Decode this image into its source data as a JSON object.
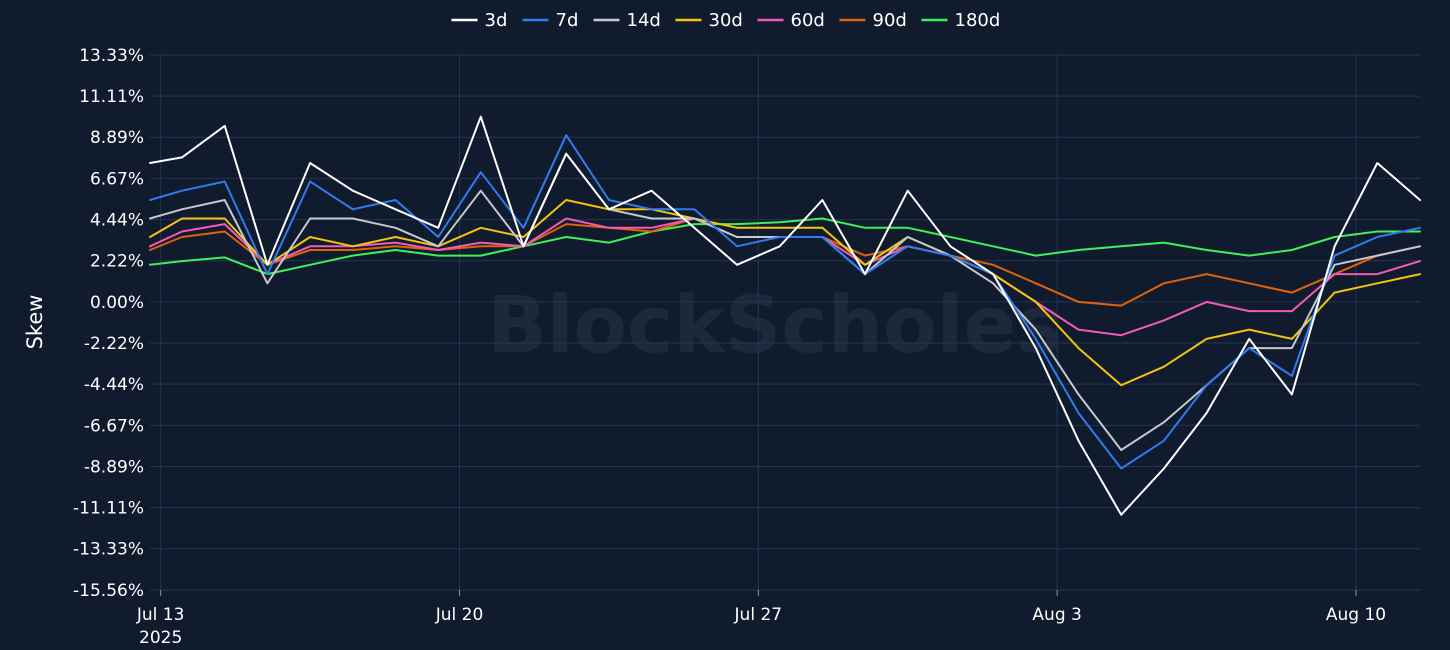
{
  "chart_data": {
    "type": "line",
    "ylabel": "Skew",
    "watermark": "BlockScholes",
    "y_axis": {
      "ticks": [
        13.33,
        11.11,
        8.89,
        6.67,
        4.44,
        2.22,
        0.0,
        -2.22,
        -4.44,
        -6.67,
        -8.89,
        -11.11,
        -13.33,
        -15.56
      ],
      "tick_labels": [
        "13.33%",
        "11.11%",
        "8.89%",
        "6.67%",
        "4.44%",
        "2.22%",
        "0.00%",
        "-2.22%",
        "-4.44%",
        "-6.67%",
        "-8.89%",
        "-11.11%",
        "-13.33%",
        "-15.56%"
      ],
      "range": [
        -15.56,
        13.33
      ]
    },
    "x_axis": {
      "ticks": [
        "2025-07-13",
        "2025-07-20",
        "2025-07-27",
        "2025-08-03",
        "2025-08-10"
      ],
      "tick_labels": [
        "Jul 13",
        "Jul 20",
        "Jul 27",
        "Aug 3",
        "Aug 10"
      ],
      "year_label": "2025",
      "range": [
        "2025-07-12 18:00",
        "2025-08-11 12:00"
      ]
    },
    "grid": true,
    "legend_position": "top-center",
    "x": [
      "2025-07-12 18:00",
      "2025-07-13 12:00",
      "2025-07-14 12:00",
      "2025-07-15 12:00",
      "2025-07-16 12:00",
      "2025-07-17 12:00",
      "2025-07-18 12:00",
      "2025-07-19 12:00",
      "2025-07-20 12:00",
      "2025-07-21 12:00",
      "2025-07-22 12:00",
      "2025-07-23 12:00",
      "2025-07-24 12:00",
      "2025-07-25 12:00",
      "2025-07-26 12:00",
      "2025-07-27 12:00",
      "2025-07-28 12:00",
      "2025-07-29 12:00",
      "2025-07-30 12:00",
      "2025-07-31 12:00",
      "2025-08-01 12:00",
      "2025-08-02 12:00",
      "2025-08-03 12:00",
      "2025-08-04 12:00",
      "2025-08-05 12:00",
      "2025-08-06 12:00",
      "2025-08-07 12:00",
      "2025-08-08 12:00",
      "2025-08-09 12:00",
      "2025-08-10 12:00",
      "2025-08-11 12:00"
    ],
    "series": [
      {
        "name": "3d",
        "color": "#ffffff",
        "values": [
          7.5,
          7.8,
          9.5,
          2.0,
          7.5,
          6.0,
          5.0,
          4.0,
          10.0,
          3.0,
          8.0,
          5.0,
          6.0,
          4.0,
          2.0,
          3.0,
          5.5,
          1.5,
          6.0,
          3.0,
          1.5,
          -2.5,
          -7.5,
          -11.5,
          -9.0,
          -6.0,
          -2.0,
          -5.0,
          3.0,
          7.5,
          5.5
        ]
      },
      {
        "name": "7d",
        "color": "#2f7bf0",
        "values": [
          5.5,
          6.0,
          6.5,
          1.5,
          6.5,
          5.0,
          5.5,
          3.5,
          7.0,
          4.0,
          9.0,
          5.5,
          5.0,
          5.0,
          3.0,
          3.5,
          3.5,
          1.5,
          3.0,
          2.5,
          1.5,
          -2.0,
          -6.0,
          -9.0,
          -7.5,
          -4.5,
          -2.5,
          -4.0,
          2.5,
          3.5,
          4.0
        ]
      },
      {
        "name": "14d",
        "color": "#c4c8cf",
        "values": [
          4.5,
          5.0,
          5.5,
          1.0,
          4.5,
          4.5,
          4.0,
          3.0,
          6.0,
          3.0,
          8.0,
          5.0,
          4.5,
          4.5,
          3.5,
          3.5,
          3.5,
          1.5,
          3.5,
          2.5,
          1.0,
          -1.5,
          -5.0,
          -8.0,
          -6.5,
          -4.5,
          -2.5,
          -2.5,
          2.0,
          2.5,
          3.0
        ]
      },
      {
        "name": "30d",
        "color": "#f2c40f",
        "values": [
          3.5,
          4.5,
          4.5,
          2.0,
          3.5,
          3.0,
          3.5,
          3.0,
          4.0,
          3.5,
          5.5,
          5.0,
          5.0,
          4.5,
          4.0,
          4.0,
          4.0,
          2.0,
          3.5,
          2.5,
          1.5,
          0.0,
          -2.5,
          -4.5,
          -3.5,
          -2.0,
          -1.5,
          -2.0,
          0.5,
          1.0,
          1.5
        ]
      },
      {
        "name": "60d",
        "color": "#f15bb5",
        "values": [
          3.0,
          3.8,
          4.2,
          2.0,
          3.0,
          3.0,
          3.2,
          2.8,
          3.2,
          3.0,
          4.5,
          4.0,
          4.0,
          4.5,
          3.5,
          3.5,
          3.5,
          2.0,
          3.0,
          2.5,
          1.5,
          0.0,
          -1.5,
          -1.8,
          -1.0,
          0.0,
          -0.5,
          -0.5,
          1.5,
          1.5,
          2.2
        ]
      },
      {
        "name": "90d",
        "color": "#e0620c",
        "values": [
          2.8,
          3.5,
          3.8,
          2.0,
          2.8,
          2.8,
          3.0,
          2.8,
          3.0,
          3.0,
          4.2,
          4.0,
          3.8,
          4.5,
          3.5,
          3.5,
          3.5,
          2.5,
          3.0,
          2.5,
          2.0,
          1.0,
          0.0,
          -0.2,
          1.0,
          1.5,
          1.0,
          0.5,
          1.5,
          2.5,
          3.0
        ]
      },
      {
        "name": "180d",
        "color": "#3ef05a",
        "values": [
          2.0,
          2.2,
          2.4,
          1.5,
          2.0,
          2.5,
          2.8,
          2.5,
          2.5,
          3.0,
          3.5,
          3.2,
          3.8,
          4.2,
          4.2,
          4.3,
          4.5,
          4.0,
          4.0,
          3.5,
          3.0,
          2.5,
          2.8,
          3.0,
          3.2,
          2.8,
          2.5,
          2.8,
          3.5,
          3.8,
          3.8
        ]
      }
    ]
  }
}
